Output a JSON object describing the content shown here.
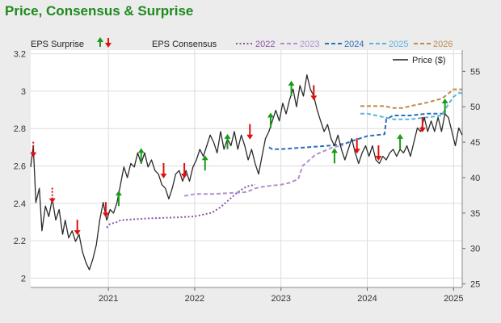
{
  "header": {
    "title": "Price, Consensus & Surprise"
  },
  "chart_data": {
    "type": "line",
    "title": "Price, Consensus & Surprise",
    "x_ticks": [
      "2021",
      "2022",
      "2023",
      "2024",
      "2025"
    ],
    "x_range": [
      2020.1,
      2025.1
    ],
    "y_left": {
      "range": [
        1.95,
        3.22
      ],
      "ticks": [
        "2",
        "2.2",
        "2.4",
        "2.6",
        "2.8",
        "3",
        "3.2"
      ]
    },
    "y_right": {
      "range": [
        24.5,
        58
      ],
      "ticks": [
        "25",
        "30",
        "35",
        "40",
        "45",
        "50",
        "55"
      ]
    },
    "legend": {
      "eps_surprise_label": "EPS Surprise",
      "eps_consensus_label": "EPS Consensus",
      "price_label": "Price ($)"
    },
    "grid": true,
    "colors": {
      "price": "#2a2a2a",
      "up": "#1a9a1a",
      "down": "#e01010",
      "c2022": "#8c52a8",
      "c2023": "#b38fd0",
      "c2024": "#2b6fb8",
      "c2025": "#5ab4e0",
      "c2026": "#c08a4a"
    },
    "price": {
      "axis": "right",
      "points": [
        [
          2020.1,
          41.5
        ],
        [
          2020.13,
          44.5
        ],
        [
          2020.16,
          36.5
        ],
        [
          2020.2,
          38.5
        ],
        [
          2020.23,
          32.5
        ],
        [
          2020.27,
          36.0
        ],
        [
          2020.31,
          34.5
        ],
        [
          2020.35,
          37.0
        ],
        [
          2020.39,
          34.0
        ],
        [
          2020.43,
          35.5
        ],
        [
          2020.47,
          32.0
        ],
        [
          2020.5,
          34.0
        ],
        [
          2020.54,
          31.5
        ],
        [
          2020.58,
          32.5
        ],
        [
          2020.62,
          31.0
        ],
        [
          2020.66,
          32.0
        ],
        [
          2020.7,
          29.5
        ],
        [
          2020.74,
          28.0
        ],
        [
          2020.78,
          27.0
        ],
        [
          2020.82,
          28.5
        ],
        [
          2020.86,
          30.5
        ],
        [
          2020.9,
          34.0
        ],
        [
          2020.94,
          36.5
        ],
        [
          2020.98,
          34.0
        ],
        [
          2021.02,
          35.5
        ],
        [
          2021.06,
          35.0
        ],
        [
          2021.1,
          36.5
        ],
        [
          2021.14,
          39.0
        ],
        [
          2021.18,
          41.5
        ],
        [
          2021.22,
          40.0
        ],
        [
          2021.26,
          42.0
        ],
        [
          2021.3,
          41.5
        ],
        [
          2021.34,
          43.5
        ],
        [
          2021.38,
          42.0
        ],
        [
          2021.42,
          43.5
        ],
        [
          2021.46,
          41.5
        ],
        [
          2021.5,
          42.5
        ],
        [
          2021.54,
          41.0
        ],
        [
          2021.58,
          40.5
        ],
        [
          2021.62,
          39.0
        ],
        [
          2021.66,
          38.5
        ],
        [
          2021.7,
          37.0
        ],
        [
          2021.74,
          38.5
        ],
        [
          2021.78,
          40.5
        ],
        [
          2021.82,
          41.0
        ],
        [
          2021.86,
          39.5
        ],
        [
          2021.9,
          41.0
        ],
        [
          2021.94,
          39.5
        ],
        [
          2021.98,
          41.5
        ],
        [
          2022.02,
          42.5
        ],
        [
          2022.06,
          44.0
        ],
        [
          2022.1,
          43.0
        ],
        [
          2022.14,
          44.5
        ],
        [
          2022.18,
          46.0
        ],
        [
          2022.22,
          45.0
        ],
        [
          2022.26,
          43.5
        ],
        [
          2022.3,
          46.5
        ],
        [
          2022.34,
          44.0
        ],
        [
          2022.38,
          45.5
        ],
        [
          2022.42,
          44.5
        ],
        [
          2022.46,
          46.5
        ],
        [
          2022.5,
          44.0
        ],
        [
          2022.54,
          46.0
        ],
        [
          2022.58,
          44.5
        ],
        [
          2022.62,
          42.5
        ],
        [
          2022.66,
          44.0
        ],
        [
          2022.7,
          42.0
        ],
        [
          2022.74,
          40.5
        ],
        [
          2022.78,
          43.0
        ],
        [
          2022.82,
          45.5
        ],
        [
          2022.86,
          46.5
        ],
        [
          2022.9,
          48.0
        ],
        [
          2022.94,
          49.5
        ],
        [
          2022.98,
          48.0
        ],
        [
          2023.02,
          50.5
        ],
        [
          2023.06,
          49.0
        ],
        [
          2023.1,
          51.0
        ],
        [
          2023.14,
          52.5
        ],
        [
          2023.18,
          50.0
        ],
        [
          2023.22,
          53.0
        ],
        [
          2023.26,
          51.5
        ],
        [
          2023.3,
          54.5
        ],
        [
          2023.34,
          52.5
        ],
        [
          2023.38,
          51.5
        ],
        [
          2023.42,
          49.5
        ],
        [
          2023.46,
          48.0
        ],
        [
          2023.5,
          46.5
        ],
        [
          2023.54,
          47.5
        ],
        [
          2023.58,
          45.5
        ],
        [
          2023.62,
          44.5
        ],
        [
          2023.66,
          46.0
        ],
        [
          2023.7,
          44.0
        ],
        [
          2023.74,
          42.5
        ],
        [
          2023.78,
          44.0
        ],
        [
          2023.82,
          45.5
        ],
        [
          2023.86,
          43.5
        ],
        [
          2023.9,
          42.0
        ],
        [
          2023.94,
          43.5
        ],
        [
          2023.98,
          44.5
        ],
        [
          2024.02,
          43.0
        ],
        [
          2024.06,
          44.5
        ],
        [
          2024.1,
          42.5
        ],
        [
          2024.14,
          42.0
        ],
        [
          2024.18,
          43.0
        ],
        [
          2024.22,
          42.5
        ],
        [
          2024.26,
          43.5
        ],
        [
          2024.3,
          44.0
        ],
        [
          2024.34,
          43.0
        ],
        [
          2024.38,
          44.0
        ],
        [
          2024.42,
          43.5
        ],
        [
          2024.46,
          44.5
        ],
        [
          2024.5,
          43.0
        ],
        [
          2024.54,
          45.0
        ],
        [
          2024.58,
          47.0
        ],
        [
          2024.62,
          46.5
        ],
        [
          2024.66,
          48.5
        ],
        [
          2024.7,
          46.5
        ],
        [
          2024.74,
          48.0
        ],
        [
          2024.78,
          46.5
        ],
        [
          2024.82,
          48.5
        ],
        [
          2024.86,
          46.5
        ],
        [
          2024.9,
          49.0
        ],
        [
          2024.94,
          48.5
        ],
        [
          2024.98,
          46.5
        ],
        [
          2025.02,
          44.5
        ],
        [
          2025.06,
          47.0
        ],
        [
          2025.1,
          46.0
        ]
      ]
    },
    "consensus": {
      "axis": "left",
      "series": [
        {
          "name": "2022",
          "style": "dotted",
          "color": "#8c52a8",
          "points": [
            [
              2020.98,
              2.27
            ],
            [
              2021.02,
              2.29
            ],
            [
              2021.1,
              2.3
            ],
            [
              2021.14,
              2.31
            ],
            [
              2021.3,
              2.315
            ],
            [
              2021.5,
              2.32
            ],
            [
              2021.8,
              2.325
            ],
            [
              2022.0,
              2.33
            ],
            [
              2022.2,
              2.35
            ],
            [
              2022.3,
              2.38
            ],
            [
              2022.4,
              2.42
            ],
            [
              2022.5,
              2.46
            ],
            [
              2022.6,
              2.49
            ],
            [
              2022.7,
              2.5
            ]
          ]
        },
        {
          "name": "2023",
          "style": "dashed",
          "color": "#b38fd0",
          "points": [
            [
              2021.88,
              2.44
            ],
            [
              2022.0,
              2.45
            ],
            [
              2022.2,
              2.45
            ],
            [
              2022.4,
              2.455
            ],
            [
              2022.6,
              2.46
            ],
            [
              2022.7,
              2.48
            ],
            [
              2022.8,
              2.49
            ],
            [
              2023.0,
              2.5
            ],
            [
              2023.1,
              2.51
            ],
            [
              2023.2,
              2.53
            ],
            [
              2023.25,
              2.6
            ],
            [
              2023.4,
              2.66
            ],
            [
              2023.6,
              2.7
            ],
            [
              2023.72,
              2.71
            ]
          ]
        },
        {
          "name": "2024",
          "style": "dashed",
          "color": "#2b6fb8",
          "points": [
            [
              2022.86,
              2.7
            ],
            [
              2022.9,
              2.69
            ],
            [
              2023.0,
              2.69
            ],
            [
              2023.3,
              2.7
            ],
            [
              2023.6,
              2.71
            ],
            [
              2023.75,
              2.72
            ],
            [
              2023.8,
              2.73
            ],
            [
              2024.0,
              2.76
            ],
            [
              2024.2,
              2.77
            ],
            [
              2024.22,
              2.85
            ],
            [
              2024.3,
              2.87
            ],
            [
              2024.5,
              2.87
            ],
            [
              2024.7,
              2.88
            ],
            [
              2024.9,
              2.88
            ]
          ]
        },
        {
          "name": "2025",
          "style": "dashed",
          "color": "#5ab4e0",
          "points": [
            [
              2023.92,
              2.88
            ],
            [
              2024.0,
              2.88
            ],
            [
              2024.1,
              2.87
            ],
            [
              2024.2,
              2.86
            ],
            [
              2024.3,
              2.85
            ],
            [
              2024.5,
              2.85
            ],
            [
              2024.7,
              2.86
            ],
            [
              2024.86,
              2.87
            ],
            [
              2024.9,
              2.9
            ],
            [
              2024.94,
              2.93
            ],
            [
              2025.0,
              2.97
            ],
            [
              2025.06,
              2.99
            ],
            [
              2025.1,
              2.99
            ]
          ]
        },
        {
          "name": "2026",
          "style": "dashed",
          "color": "#c08a4a",
          "points": [
            [
              2023.92,
              2.92
            ],
            [
              2024.2,
              2.92
            ],
            [
              2024.3,
              2.91
            ],
            [
              2024.4,
              2.91
            ],
            [
              2024.5,
              2.92
            ],
            [
              2024.6,
              2.93
            ],
            [
              2024.7,
              2.94
            ],
            [
              2024.86,
              2.96
            ],
            [
              2024.92,
              2.98
            ],
            [
              2025.0,
              3.01
            ],
            [
              2025.1,
              3.01
            ]
          ]
        }
      ]
    },
    "eps_surprises": {
      "axis": "right",
      "arrows": [
        {
          "x": 2020.13,
          "y": 43.0,
          "dir": "down",
          "dotted": true
        },
        {
          "x": 2020.35,
          "y": 36.5,
          "dir": "down",
          "dotted": true
        },
        {
          "x": 2020.64,
          "y": 32.0,
          "dir": "down",
          "dotted": false
        },
        {
          "x": 2020.97,
          "y": 34.5,
          "dir": "down",
          "dotted": false
        },
        {
          "x": 2021.12,
          "y": 36.0,
          "dir": "up",
          "dotted": false
        },
        {
          "x": 2021.38,
          "y": 42.0,
          "dir": "up",
          "dotted": false
        },
        {
          "x": 2021.64,
          "y": 40.0,
          "dir": "down",
          "dotted": false
        },
        {
          "x": 2021.88,
          "y": 40.0,
          "dir": "down",
          "dotted": false
        },
        {
          "x": 2022.12,
          "y": 41.0,
          "dir": "up",
          "dotted": false
        },
        {
          "x": 2022.38,
          "y": 44.0,
          "dir": "up",
          "dotted": false
        },
        {
          "x": 2022.64,
          "y": 45.5,
          "dir": "down",
          "dotted": false
        },
        {
          "x": 2022.88,
          "y": 47.0,
          "dir": "up",
          "dotted": false
        },
        {
          "x": 2023.12,
          "y": 51.5,
          "dir": "up",
          "dotted": false
        },
        {
          "x": 2023.38,
          "y": 51.0,
          "dir": "down",
          "dotted": false
        },
        {
          "x": 2023.62,
          "y": 42.0,
          "dir": "up",
          "dotted": false
        },
        {
          "x": 2023.88,
          "y": 43.5,
          "dir": "down",
          "dotted": false
        },
        {
          "x": 2024.13,
          "y": 42.5,
          "dir": "down",
          "dotted": false
        },
        {
          "x": 2024.38,
          "y": 44.0,
          "dir": "up",
          "dotted": false
        },
        {
          "x": 2024.64,
          "y": 46.5,
          "dir": "down",
          "dotted": false
        },
        {
          "x": 2024.9,
          "y": 49.0,
          "dir": "up",
          "dotted": false
        }
      ]
    }
  }
}
